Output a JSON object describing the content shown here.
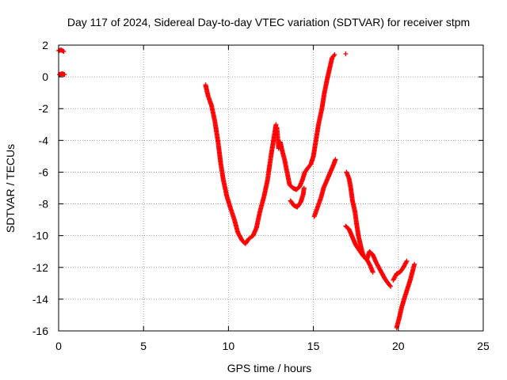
{
  "chart_data": {
    "type": "scatter",
    "title": "Day 117 of 2024, Sidereal Day-to-day VTEC variation (SDTVAR) for receiver stpm",
    "xlabel": "GPS time / hours",
    "ylabel": "SDTVAR / TECUs",
    "xlim": [
      0,
      25
    ],
    "ylim": [
      -16,
      2
    ],
    "xticks": [
      0,
      5,
      10,
      15,
      20,
      25
    ],
    "yticks": [
      -16,
      -14,
      -12,
      -10,
      -8,
      -6,
      -4,
      -2,
      0,
      2
    ],
    "grid": true,
    "marker": "plus",
    "color": "#ff0000",
    "series": [
      {
        "name": "SDTVAR",
        "segments": [
          [
            [
              0.0,
              1.65
            ],
            [
              0.15,
              1.7
            ],
            [
              0.3,
              1.6
            ]
          ],
          [
            [
              0.05,
              0.15
            ],
            [
              0.2,
              0.2
            ],
            [
              0.35,
              0.15
            ]
          ],
          [
            [
              8.65,
              -0.5
            ],
            [
              8.8,
              -1.2
            ],
            [
              9.0,
              -1.8
            ],
            [
              9.2,
              -2.8
            ],
            [
              9.4,
              -4.2
            ],
            [
              9.55,
              -5.5
            ],
            [
              9.7,
              -6.5
            ],
            [
              9.9,
              -7.5
            ],
            [
              10.1,
              -8.2
            ],
            [
              10.35,
              -9.0
            ],
            [
              10.55,
              -9.8
            ],
            [
              10.8,
              -10.3
            ],
            [
              11.0,
              -10.5
            ],
            [
              11.2,
              -10.2
            ],
            [
              11.45,
              -10.0
            ],
            [
              11.65,
              -9.5
            ],
            [
              11.85,
              -8.5
            ],
            [
              12.1,
              -7.5
            ],
            [
              12.3,
              -6.5
            ],
            [
              12.5,
              -5.0
            ],
            [
              12.65,
              -4.0
            ],
            [
              12.8,
              -3.0
            ]
          ],
          [
            [
              12.85,
              -3.2
            ],
            [
              12.95,
              -4.5
            ],
            [
              13.05,
              -4.1
            ],
            [
              13.15,
              -4.6
            ],
            [
              13.3,
              -5.2
            ],
            [
              13.45,
              -6.0
            ],
            [
              13.6,
              -6.8
            ],
            [
              13.8,
              -7.0
            ],
            [
              14.0,
              -7.1
            ],
            [
              14.2,
              -6.9
            ],
            [
              14.35,
              -6.5
            ],
            [
              14.5,
              -6.0
            ],
            [
              14.7,
              -5.7
            ],
            [
              14.85,
              -5.5
            ],
            [
              15.0,
              -5.0
            ],
            [
              15.15,
              -4.0
            ],
            [
              15.3,
              -3.0
            ],
            [
              15.5,
              -2.0
            ],
            [
              15.65,
              -1.0
            ],
            [
              15.8,
              -0.2
            ],
            [
              15.95,
              0.5
            ],
            [
              16.1,
              1.2
            ],
            [
              16.25,
              1.4
            ]
          ],
          [
            [
              16.9,
              1.45
            ]
          ],
          [
            [
              13.65,
              -7.8
            ],
            [
              13.85,
              -8.1
            ],
            [
              14.05,
              -8.2
            ],
            [
              14.25,
              -7.9
            ],
            [
              14.4,
              -7.4
            ],
            [
              14.45,
              -7.0
            ]
          ],
          [
            [
              15.05,
              -8.8
            ],
            [
              15.25,
              -8.2
            ],
            [
              15.45,
              -7.6
            ],
            [
              15.6,
              -7.0
            ],
            [
              15.8,
              -6.5
            ],
            [
              16.0,
              -6.0
            ],
            [
              16.2,
              -5.5
            ],
            [
              16.3,
              -5.2
            ]
          ],
          [
            [
              16.95,
              -6.0
            ],
            [
              17.1,
              -6.4
            ],
            [
              17.2,
              -7.0
            ],
            [
              17.3,
              -7.8
            ],
            [
              17.45,
              -8.5
            ],
            [
              17.55,
              -9.3
            ],
            [
              17.65,
              -10.0
            ],
            [
              17.8,
              -10.7
            ],
            [
              17.95,
              -11.3
            ],
            [
              18.15,
              -11.5
            ],
            [
              18.3,
              -11.0
            ],
            [
              18.5,
              -11.2
            ],
            [
              18.7,
              -11.7
            ],
            [
              18.95,
              -12.2
            ],
            [
              19.2,
              -12.7
            ],
            [
              19.4,
              -13.0
            ],
            [
              19.55,
              -13.2
            ]
          ],
          [
            [
              16.9,
              -9.4
            ],
            [
              17.1,
              -9.6
            ],
            [
              17.3,
              -10.1
            ],
            [
              17.5,
              -10.6
            ],
            [
              17.75,
              -11.0
            ],
            [
              17.95,
              -11.3
            ],
            [
              18.15,
              -11.5
            ],
            [
              18.35,
              -11.9
            ],
            [
              18.5,
              -12.3
            ]
          ],
          [
            [
              19.7,
              -12.8
            ],
            [
              19.9,
              -12.4
            ],
            [
              20.1,
              -12.3
            ],
            [
              20.3,
              -12.0
            ],
            [
              20.5,
              -11.6
            ]
          ],
          [
            [
              19.9,
              -15.8
            ],
            [
              20.05,
              -15.2
            ],
            [
              20.2,
              -14.5
            ],
            [
              20.4,
              -13.8
            ],
            [
              20.55,
              -13.3
            ],
            [
              20.7,
              -12.8
            ],
            [
              20.85,
              -12.2
            ],
            [
              20.95,
              -11.8
            ]
          ]
        ]
      }
    ]
  }
}
